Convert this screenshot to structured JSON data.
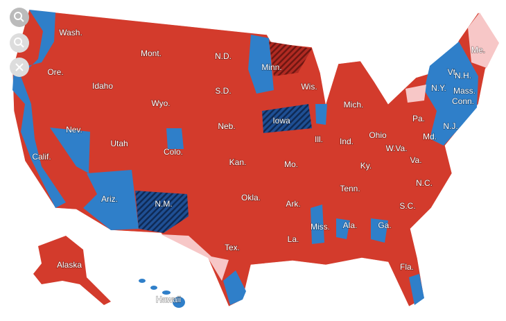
{
  "map": {
    "labels": [
      "Wash.",
      "Mont.",
      "N.D.",
      "Minn.",
      "Me.",
      "Ore.",
      "Idaho",
      "S.D.",
      "Wis.",
      "Vt.",
      "N.H.",
      "N.Y.",
      "Mass.",
      "Conn.",
      "Wyo.",
      "Mich.",
      "Pa.",
      "N.J.",
      "Nev.",
      "Utah",
      "Neb.",
      "Iowa",
      "Ohio",
      "Md.",
      "Colo.",
      "Ill.",
      "Ind.",
      "W.Va.",
      "Calif.",
      "Kan.",
      "Mo.",
      "Ky.",
      "Va.",
      "N.C.",
      "Tenn.",
      "Ariz.",
      "N.M.",
      "Okla.",
      "Ark.",
      "S.C.",
      "Miss.",
      "Ala.",
      "Ga.",
      "Tex.",
      "La.",
      "Alaska",
      "Fla.",
      "Hawaii"
    ]
  }
}
